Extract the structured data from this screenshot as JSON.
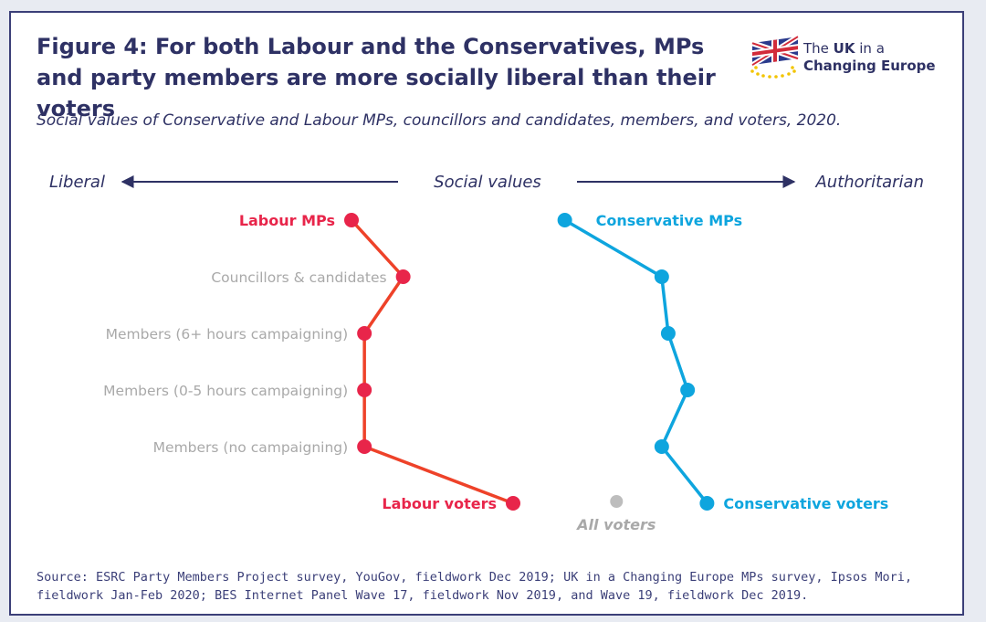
{
  "figure": {
    "title": "Figure 4: For both Labour and the Conservatives, MPs and party members are more socially liberal than their voters",
    "subtitle": "Social values of Conservative and Labour MPs, councillors and candidates, members, and voters, 2020.",
    "source": "Source: ESRC Party Members Project survey, YouGov, fieldwork Dec 2019; UK in a Changing Europe MPs survey, Ipsos Mori, fieldwork Jan-Feb 2020; BES Internet Panel Wave 17, fieldwork Nov 2019, and Wave 19, fieldwork Dec 2019."
  },
  "logo": {
    "line1_prefix": "The ",
    "line1_bold": "UK",
    "line1_suffix": " in a",
    "line2": "Changing Europe",
    "icon": "union-flag-with-eu-stars-icon"
  },
  "colors": {
    "labour": "#e8254a",
    "labour_line": "#ee4229",
    "conservative": "#0ea5de",
    "all_voters": "#bdbdbd",
    "navy": "#2e3164",
    "category_text": "#a9a9a9"
  },
  "chart_data": {
    "type": "scatter",
    "axis": {
      "label": "Social values",
      "left_label": "Liberal",
      "right_label": "Authoritarian",
      "xlim": [
        0,
        100
      ]
    },
    "categories": [
      "Labour MPs / Conservative MPs",
      "Councillors & candidates",
      "Members (6+ hours campaigning)",
      "Members (0-5 hours campaigning)",
      "Members (no campaigning)",
      "Voters"
    ],
    "row_labels": [
      "",
      "Councillors & candidates",
      "Members (6+ hours campaigning)",
      "Members (0-5 hours campaigning)",
      "Members (no campaigning)",
      ""
    ],
    "series": [
      {
        "name": "Labour",
        "color_key": "labour",
        "values": [
          25,
          33,
          27,
          27,
          27,
          50
        ],
        "first_label": "Labour MPs",
        "last_label": "Labour voters"
      },
      {
        "name": "Conservative",
        "color_key": "conservative",
        "values": [
          58,
          73,
          74,
          77,
          73,
          80
        ],
        "first_label": "Conservative MPs",
        "last_label": "Conservative voters"
      }
    ],
    "reference_point": {
      "label": "All voters",
      "value": 66,
      "row": 5
    },
    "grid": false,
    "legend": "none"
  }
}
